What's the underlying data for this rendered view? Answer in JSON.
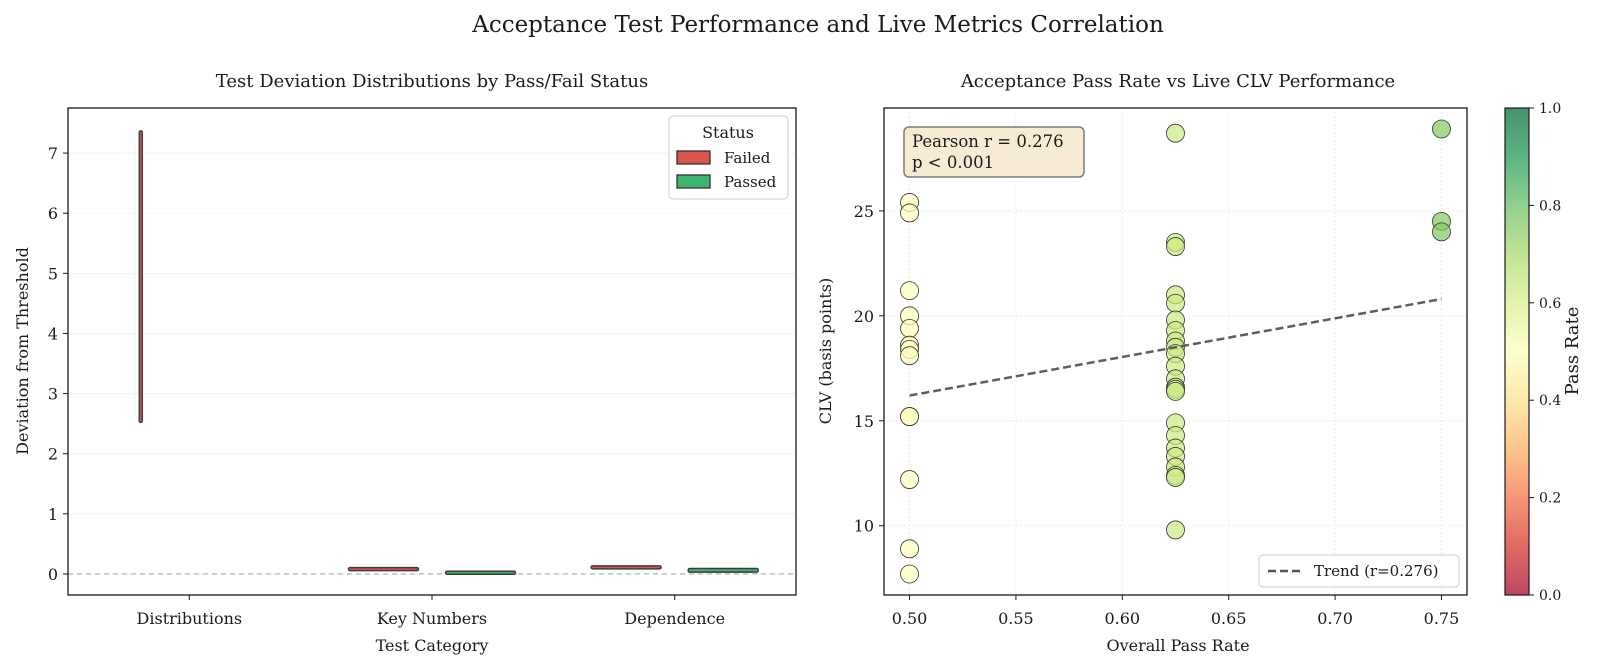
{
  "figure": {
    "title": "Acceptance Test Performance and Live Metrics Correlation"
  },
  "chart_data": [
    {
      "type": "violin",
      "title": "Test Deviation Distributions by Pass/Fail Status",
      "xlabel": "Test Category",
      "ylabel": "Deviation from Threshold",
      "categories": [
        "Distributions",
        "Key Numbers",
        "Dependence"
      ],
      "ylim": [
        -0.35,
        7.75
      ],
      "yticks": [
        "0",
        "1",
        "2",
        "3",
        "4",
        "5",
        "6",
        "7"
      ],
      "ytick_values": [
        0,
        1,
        2,
        3,
        4,
        5,
        6,
        7
      ],
      "reference_line": 0,
      "grid": true,
      "legend": {
        "title": "Status",
        "position": "top-right",
        "entries": [
          {
            "name": "Failed",
            "color": "#d9534f"
          },
          {
            "name": "Passed",
            "color": "#3cb371"
          }
        ]
      },
      "series": [
        {
          "name": "Failed",
          "values": [
            {
              "category": "Distributions",
              "min": 2.52,
              "max": 7.37
            },
            {
              "category": "Key Numbers",
              "min": 0.07,
              "max": 0.09
            },
            {
              "category": "Dependence",
              "min": 0.1,
              "max": 0.12
            }
          ]
        },
        {
          "name": "Passed",
          "values": [
            {
              "category": "Key Numbers",
              "min": 0.0,
              "max": 0.04
            },
            {
              "category": "Dependence",
              "min": 0.03,
              "max": 0.09
            }
          ]
        }
      ]
    },
    {
      "type": "scatter",
      "title": "Acceptance Pass Rate vs Live CLV Performance",
      "xlabel": "Overall Pass Rate",
      "ylabel": "CLV (basis points)",
      "xlim": [
        0.488,
        0.762
      ],
      "ylim": [
        6.7,
        29.9
      ],
      "xticks": [
        "0.50",
        "0.55",
        "0.60",
        "0.65",
        "0.70",
        "0.75"
      ],
      "xtick_values": [
        0.5,
        0.55,
        0.6,
        0.65,
        0.7,
        0.75
      ],
      "yticks": [
        "10",
        "15",
        "20",
        "25"
      ],
      "ytick_values": [
        10,
        15,
        20,
        25
      ],
      "grid": true,
      "annotation_lines": [
        "Pearson r = 0.276",
        "p < 0.001"
      ],
      "trend": {
        "name": "Trend (r=0.276)",
        "x": [
          0.5,
          0.75
        ],
        "y": [
          16.2,
          20.8
        ]
      },
      "legend_position": "bottom-right",
      "colorbar": {
        "label": "Pass Rate",
        "range": [
          0.0,
          1.0
        ],
        "ticks": [
          "0.0",
          "0.2",
          "0.4",
          "0.6",
          "0.8",
          "1.0"
        ],
        "tick_values": [
          0.0,
          0.2,
          0.4,
          0.6,
          0.8,
          1.0
        ]
      },
      "points": [
        {
          "x": 0.5,
          "y": 25.4
        },
        {
          "x": 0.5,
          "y": 24.9
        },
        {
          "x": 0.5,
          "y": 21.2
        },
        {
          "x": 0.5,
          "y": 20.0
        },
        {
          "x": 0.5,
          "y": 19.4
        },
        {
          "x": 0.5,
          "y": 18.6
        },
        {
          "x": 0.5,
          "y": 18.4
        },
        {
          "x": 0.5,
          "y": 18.1
        },
        {
          "x": 0.5,
          "y": 15.2
        },
        {
          "x": 0.5,
          "y": 15.2
        },
        {
          "x": 0.5,
          "y": 12.2
        },
        {
          "x": 0.5,
          "y": 8.9
        },
        {
          "x": 0.5,
          "y": 7.7
        },
        {
          "x": 0.625,
          "y": 28.7
        },
        {
          "x": 0.625,
          "y": 23.5
        },
        {
          "x": 0.625,
          "y": 23.3
        },
        {
          "x": 0.625,
          "y": 21.0
        },
        {
          "x": 0.625,
          "y": 20.6
        },
        {
          "x": 0.625,
          "y": 19.8
        },
        {
          "x": 0.625,
          "y": 19.3
        },
        {
          "x": 0.625,
          "y": 18.8
        },
        {
          "x": 0.625,
          "y": 18.5
        },
        {
          "x": 0.625,
          "y": 18.2
        },
        {
          "x": 0.625,
          "y": 17.6
        },
        {
          "x": 0.625,
          "y": 17.0
        },
        {
          "x": 0.625,
          "y": 16.6
        },
        {
          "x": 0.625,
          "y": 16.5
        },
        {
          "x": 0.625,
          "y": 16.4
        },
        {
          "x": 0.625,
          "y": 14.9
        },
        {
          "x": 0.625,
          "y": 14.3
        },
        {
          "x": 0.625,
          "y": 13.7
        },
        {
          "x": 0.625,
          "y": 13.3
        },
        {
          "x": 0.625,
          "y": 12.8
        },
        {
          "x": 0.625,
          "y": 12.4
        },
        {
          "x": 0.625,
          "y": 12.3
        },
        {
          "x": 0.625,
          "y": 9.8
        },
        {
          "x": 0.75,
          "y": 28.9
        },
        {
          "x": 0.75,
          "y": 24.5
        },
        {
          "x": 0.75,
          "y": 24.0
        }
      ]
    }
  ]
}
